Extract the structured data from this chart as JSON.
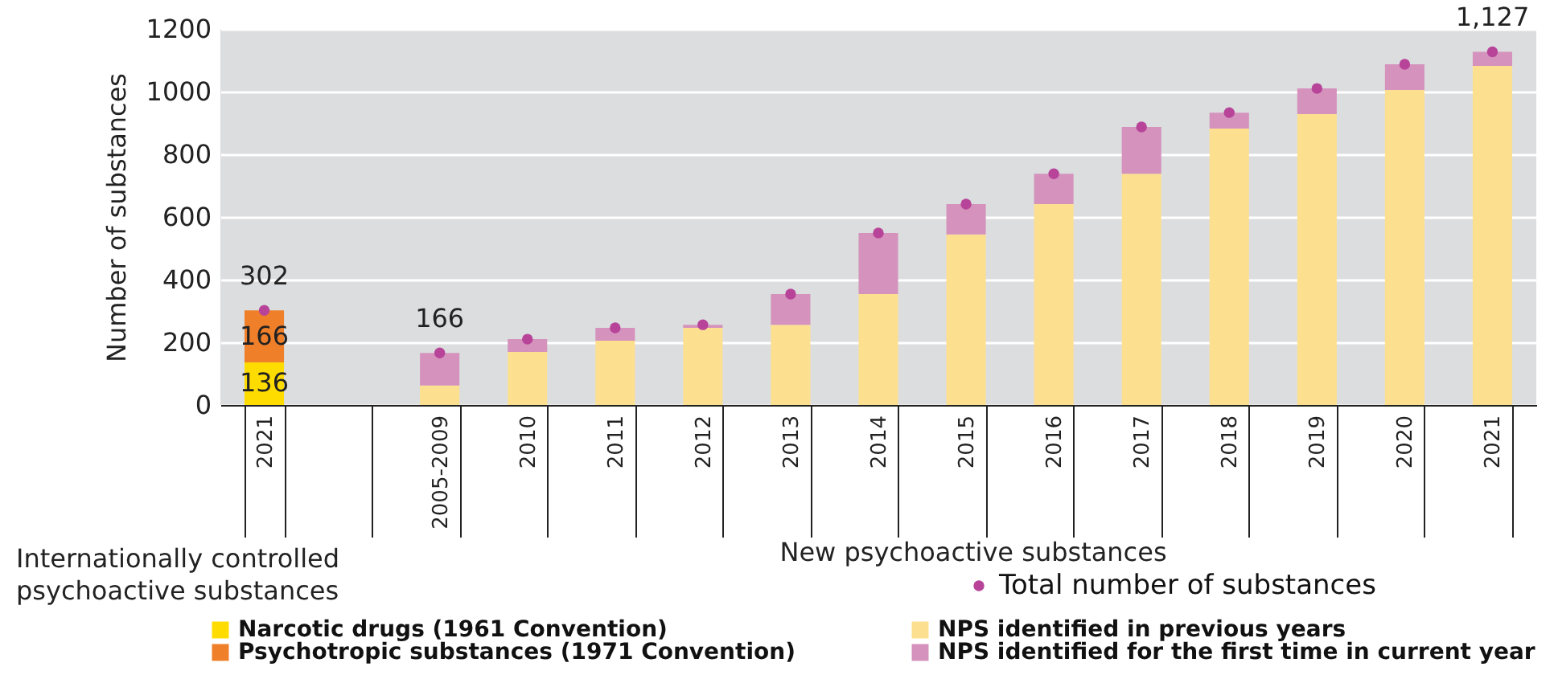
{
  "chart_data": {
    "type": "bar",
    "stacked": true,
    "ylabel": "Number of substances",
    "categories": [
      "2021",
      null,
      "2005-2009",
      "2010",
      "2011",
      "2012",
      "2013",
      "2014",
      "2015",
      "2016",
      "2017",
      "2018",
      "2019",
      "2020",
      "2021"
    ],
    "series": [
      {
        "name": "Narcotic drugs (1961 Convention)",
        "color": "#ffdc00",
        "values": [
          136,
          null,
          null,
          null,
          null,
          null,
          null,
          null,
          null,
          null,
          null,
          null,
          null,
          null,
          null
        ],
        "value_labels": [
          "136",
          null,
          null,
          null,
          null,
          null,
          null,
          null,
          null,
          null,
          null,
          null,
          null,
          null,
          null
        ]
      },
      {
        "name": "Psychotropic substances (1971 Convention)",
        "color": "#f07f2a",
        "values": [
          166,
          null,
          null,
          null,
          null,
          null,
          null,
          null,
          null,
          null,
          null,
          null,
          null,
          null,
          null
        ],
        "value_labels": [
          "166",
          null,
          null,
          null,
          null,
          null,
          null,
          null,
          null,
          null,
          null,
          null,
          null,
          null,
          null
        ]
      },
      {
        "name": "NPS identified in previous years",
        "color": "#fde08f",
        "values": [
          null,
          null,
          62,
          169,
          205,
          246,
          256,
          354,
          544,
          641,
          738,
          882,
          928,
          1005,
          1082
        ]
      },
      {
        "name": "NPS identified for the first time in current year",
        "color": "#d492bd",
        "values": [
          null,
          null,
          104,
          41,
          41,
          10,
          98,
          195,
          97,
          97,
          149,
          51,
          82,
          82,
          45
        ]
      },
      {
        "name": "Total number of substances",
        "type": "scatter",
        "marker": "circle",
        "color": "#b8449a",
        "values": [
          302,
          null,
          166,
          210,
          246,
          256,
          354,
          549,
          641,
          738,
          887,
          933,
          1010,
          1087,
          1127
        ],
        "value_labels": [
          "302",
          null,
          "166",
          null,
          null,
          null,
          null,
          null,
          null,
          null,
          null,
          null,
          null,
          null,
          "1,127"
        ]
      }
    ],
    "ylim": [
      0,
      1200
    ],
    "yticks": [
      0,
      200,
      400,
      600,
      800,
      1000,
      1200
    ],
    "grid": "y",
    "legend": "bottom",
    "annotations": [
      "New psychoactive substances",
      "Internationally controlled psychoactive substances"
    ]
  }
}
